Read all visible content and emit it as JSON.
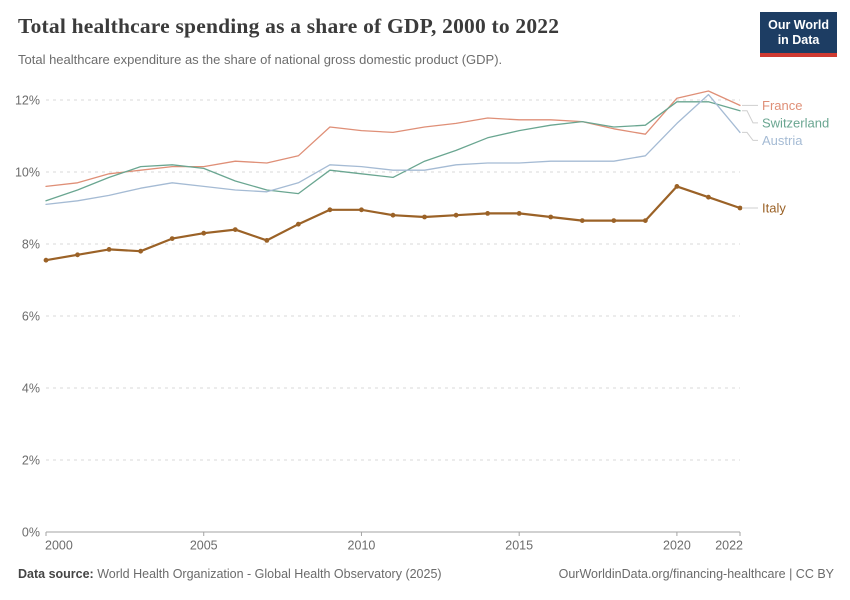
{
  "header": {
    "title": "Total healthcare spending as a share of GDP, 2000 to 2022",
    "subtitle": "Total healthcare expenditure as the share of national gross domestic product (GDP).",
    "logo": {
      "line1": "Our World",
      "line2": "in Data",
      "bg_color": "#1d3d63",
      "stripe_color": "#cf3a31"
    }
  },
  "chart_data": {
    "type": "line",
    "title": "Total healthcare spending as a share of GDP, 2000 to 2022",
    "xlabel": "",
    "ylabel": "",
    "ylim": [
      0,
      12
    ],
    "yticks": [
      0,
      2,
      4,
      6,
      8,
      10,
      12
    ],
    "ytick_suffix": "%",
    "xticks": [
      2000,
      2005,
      2010,
      2015,
      2020,
      2022
    ],
    "grid": "horizontal-dashed",
    "legend_position": "right",
    "x": [
      2000,
      2001,
      2002,
      2003,
      2004,
      2005,
      2006,
      2007,
      2008,
      2009,
      2010,
      2011,
      2012,
      2013,
      2014,
      2015,
      2016,
      2017,
      2018,
      2019,
      2020,
      2021,
      2022
    ],
    "series": [
      {
        "name": "France",
        "color": "#df8f77",
        "values": [
          9.6,
          9.7,
          9.95,
          10.05,
          10.15,
          10.15,
          10.3,
          10.25,
          10.45,
          11.25,
          11.15,
          11.1,
          11.25,
          11.35,
          11.5,
          11.45,
          11.45,
          11.4,
          11.2,
          11.05,
          12.05,
          12.25,
          11.85
        ],
        "markers": false
      },
      {
        "name": "Switzerland",
        "color": "#6aa691",
        "values": [
          9.2,
          9.5,
          9.85,
          10.15,
          10.2,
          10.1,
          9.75,
          9.5,
          9.4,
          10.05,
          9.95,
          9.85,
          10.3,
          10.6,
          10.95,
          11.15,
          11.3,
          11.4,
          11.25,
          11.3,
          11.95,
          11.95,
          11.7
        ],
        "markers": false
      },
      {
        "name": "Austria",
        "color": "#a5bbd4",
        "values": [
          9.1,
          9.2,
          9.35,
          9.55,
          9.7,
          9.6,
          9.5,
          9.45,
          9.7,
          10.2,
          10.15,
          10.05,
          10.05,
          10.2,
          10.25,
          10.25,
          10.3,
          10.3,
          10.3,
          10.45,
          11.35,
          12.15,
          11.1
        ],
        "markers": false
      },
      {
        "name": "Italy",
        "color": "#9b6227",
        "values": [
          7.55,
          7.7,
          7.85,
          7.8,
          8.15,
          8.3,
          8.4,
          8.1,
          8.55,
          8.95,
          8.95,
          8.8,
          8.75,
          8.8,
          8.85,
          8.85,
          8.75,
          8.65,
          8.65,
          8.65,
          9.6,
          9.3,
          9.0
        ],
        "markers": true
      }
    ]
  },
  "footer": {
    "source_label": "Data source:",
    "source_text": " World Health Organization - Global Health Observatory (2025)",
    "right_text": "OurWorldinData.org/financing-healthcare | CC BY"
  }
}
